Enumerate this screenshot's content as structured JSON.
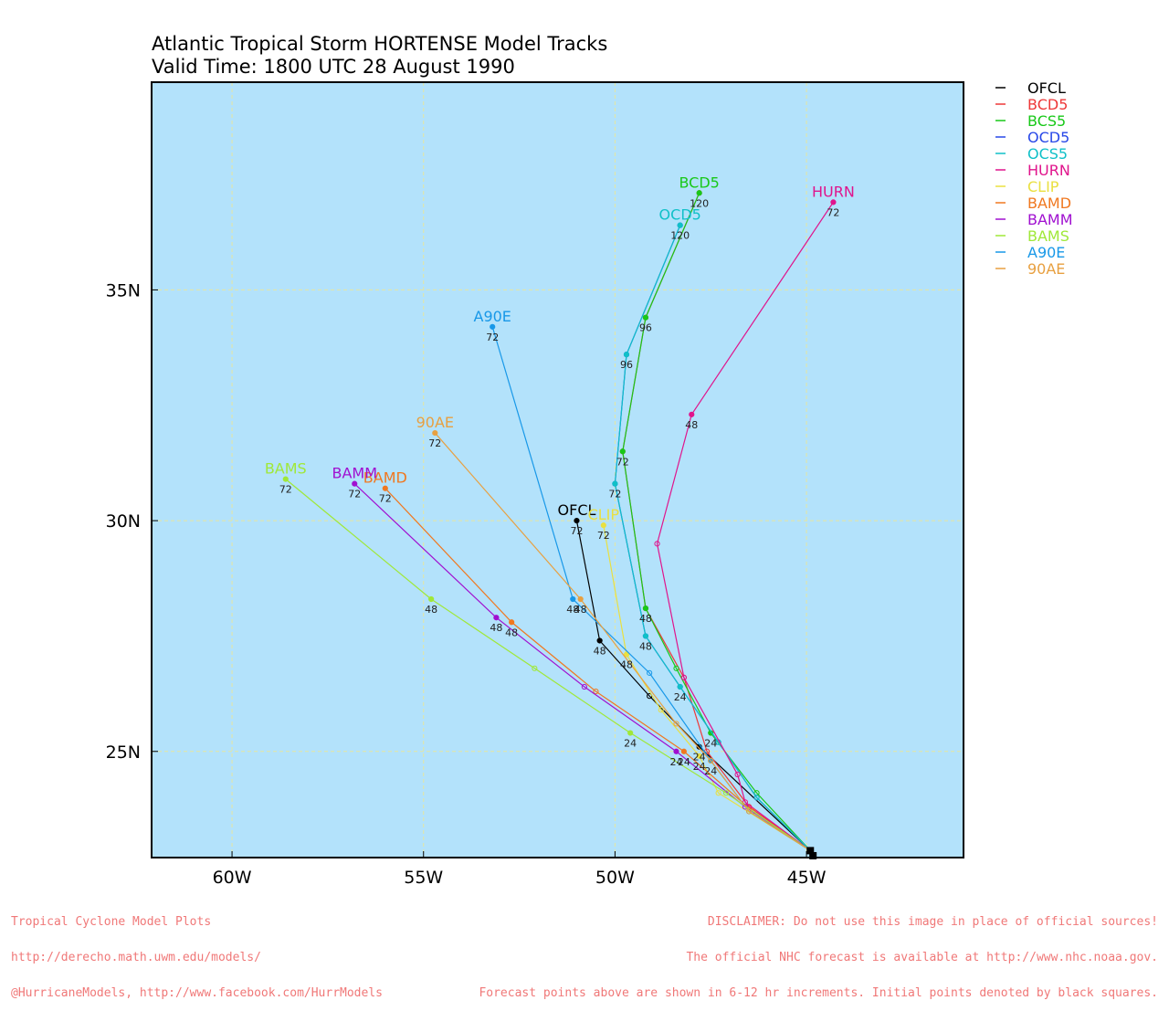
{
  "title": {
    "line1": "Atlantic Tropical Storm HORTENSE Model Tracks",
    "line2": "Valid Time: 1800 UTC 28 August 1990"
  },
  "footer": {
    "left": [
      "Tropical Cyclone Model Plots",
      "http://derecho.math.uwm.edu/models/",
      "@HurricaneModels, http://www.facebook.com/HurrModels"
    ],
    "right": [
      "DISCLAIMER: Do not use this image in place of official sources!",
      "The official NHC forecast is available at http://www.nhc.noaa.gov.",
      "Forecast points above are shown in 6-12 hr increments. Initial points denoted by black squares."
    ]
  },
  "colors": {
    "ocean": "#b3e2fb",
    "grid": "#e6e6a0",
    "frame": "#000000"
  },
  "chart_data": {
    "type": "line",
    "xlim": [
      -62.1,
      -40.9
    ],
    "ylim": [
      22.7,
      39.5
    ],
    "x_ticks": [
      {
        "value": -60,
        "label": "60W"
      },
      {
        "value": -55,
        "label": "55W"
      },
      {
        "value": -50,
        "label": "50W"
      },
      {
        "value": -45,
        "label": "45W"
      }
    ],
    "y_ticks": [
      {
        "value": 25,
        "label": "25N"
      },
      {
        "value": 30,
        "label": "30N"
      },
      {
        "value": 35,
        "label": "35N"
      }
    ],
    "grid": true,
    "legend_position": "right-outside-top",
    "initial_points": [
      [
        -44.9,
        22.85
      ],
      [
        -44.83,
        22.74
      ]
    ],
    "series": [
      {
        "name": "OFCL",
        "color": "#000000",
        "points": [
          [
            -44.9,
            22.85
          ],
          [
            -47.8,
            25.1
          ],
          [
            -49.1,
            26.2
          ],
          [
            -50.4,
            27.4
          ],
          [
            -51.0,
            30.0
          ]
        ],
        "labels": [
          {
            "idx": 1,
            "text": "24"
          },
          {
            "idx": 3,
            "text": "48"
          },
          {
            "idx": 4,
            "text": "72"
          }
        ],
        "end_label": "OFCL"
      },
      {
        "name": "BCD5",
        "color": "#ee3838",
        "points": [
          [
            -44.9,
            22.85
          ],
          [
            -46.5,
            23.8
          ],
          [
            -47.6,
            25.0
          ],
          [
            -48.2,
            26.6
          ],
          [
            -49.2,
            28.1
          ],
          [
            -49.8,
            31.5
          ],
          [
            -49.2,
            34.4
          ],
          [
            -47.8,
            37.1
          ]
        ],
        "labels": [],
        "end_label": ""
      },
      {
        "name": "BCS5",
        "color": "#18c818",
        "points": [
          [
            -44.9,
            22.85
          ],
          [
            -46.3,
            24.1
          ],
          [
            -47.5,
            25.4
          ],
          [
            -48.4,
            26.8
          ],
          [
            -49.2,
            28.1
          ],
          [
            -49.8,
            31.5
          ],
          [
            -49.2,
            34.4
          ],
          [
            -47.8,
            37.1
          ]
        ],
        "labels": [
          {
            "idx": 2,
            "text": "24"
          },
          {
            "idx": 4,
            "text": "48"
          },
          {
            "idx": 5,
            "text": "72"
          },
          {
            "idx": 6,
            "text": "96"
          },
          {
            "idx": 7,
            "text": "120"
          }
        ],
        "end_label": "BCD5"
      },
      {
        "name": "OCD5",
        "color": "#2848e8",
        "points": [
          [
            -44.9,
            22.85
          ],
          [
            -46.3,
            24.0
          ],
          [
            -47.3,
            25.2
          ],
          [
            -48.3,
            26.4
          ],
          [
            -49.2,
            27.5
          ],
          [
            -50.0,
            30.8
          ],
          [
            -49.7,
            33.6
          ],
          [
            -48.3,
            36.4
          ]
        ],
        "labels": [],
        "end_label": ""
      },
      {
        "name": "OCS5",
        "color": "#10c0c8",
        "points": [
          [
            -44.9,
            22.85
          ],
          [
            -46.3,
            24.0
          ],
          [
            -47.3,
            25.2
          ],
          [
            -48.3,
            26.4
          ],
          [
            -49.2,
            27.5
          ],
          [
            -50.0,
            30.8
          ],
          [
            -49.7,
            33.6
          ],
          [
            -48.3,
            36.4
          ]
        ],
        "labels": [
          {
            "idx": 3,
            "text": "24"
          },
          {
            "idx": 4,
            "text": "48"
          },
          {
            "idx": 5,
            "text": "72"
          },
          {
            "idx": 6,
            "text": "96"
          },
          {
            "idx": 7,
            "text": "120"
          }
        ],
        "end_label": "OCD5"
      },
      {
        "name": "HURN",
        "color": "#e0148c",
        "points": [
          [
            -44.9,
            22.85
          ],
          [
            -46.6,
            23.9
          ],
          [
            -46.8,
            24.5
          ],
          [
            -48.2,
            26.6
          ],
          [
            -48.9,
            29.5
          ],
          [
            -48.0,
            32.3
          ],
          [
            -44.3,
            36.9
          ]
        ],
        "labels": [
          {
            "idx": 5,
            "text": "48"
          },
          {
            "idx": 6,
            "text": "72"
          }
        ],
        "end_label": "HURN"
      },
      {
        "name": "CLIP",
        "color": "#eae040",
        "points": [
          [
            -44.9,
            22.85
          ],
          [
            -47.3,
            24.1
          ],
          [
            -47.8,
            24.9
          ],
          [
            -48.8,
            25.9
          ],
          [
            -49.7,
            27.1
          ],
          [
            -50.3,
            29.9
          ]
        ],
        "labels": [
          {
            "idx": 2,
            "text": "24"
          },
          {
            "idx": 4,
            "text": "48"
          },
          {
            "idx": 5,
            "text": "72"
          }
        ],
        "end_label": "CLIP"
      },
      {
        "name": "BAMD",
        "color": "#f07820",
        "points": [
          [
            -44.9,
            22.85
          ],
          [
            -46.4,
            23.7
          ],
          [
            -48.2,
            25.0
          ],
          [
            -50.5,
            26.3
          ],
          [
            -52.7,
            27.8
          ],
          [
            -56.0,
            30.7
          ]
        ],
        "labels": [
          {
            "idx": 2,
            "text": "24"
          },
          {
            "idx": 4,
            "text": "48"
          },
          {
            "idx": 5,
            "text": "72"
          }
        ],
        "end_label": "BAMD"
      },
      {
        "name": "BAMM",
        "color": "#a010d0",
        "points": [
          [
            -44.9,
            22.85
          ],
          [
            -46.6,
            23.8
          ],
          [
            -48.4,
            25.0
          ],
          [
            -50.8,
            26.4
          ],
          [
            -53.1,
            27.9
          ],
          [
            -56.8,
            30.8
          ]
        ],
        "labels": [
          {
            "idx": 2,
            "text": "24"
          },
          {
            "idx": 4,
            "text": "48"
          },
          {
            "idx": 5,
            "text": "72"
          }
        ],
        "end_label": "BAMM"
      },
      {
        "name": "BAMS",
        "color": "#a0e838",
        "points": [
          [
            -44.9,
            22.85
          ],
          [
            -47.1,
            24.1
          ],
          [
            -49.6,
            25.4
          ],
          [
            -52.1,
            26.8
          ],
          [
            -54.8,
            28.3
          ],
          [
            -58.6,
            30.9
          ]
        ],
        "labels": [
          {
            "idx": 2,
            "text": "24"
          },
          {
            "idx": 4,
            "text": "48"
          },
          {
            "idx": 5,
            "text": "72"
          }
        ],
        "end_label": "BAMS"
      },
      {
        "name": "A90E",
        "color": "#1898e8",
        "points": [
          [
            -44.9,
            22.85
          ],
          [
            -46.5,
            23.7
          ],
          [
            -47.5,
            24.8
          ],
          [
            -49.1,
            26.7
          ],
          [
            -51.1,
            28.3
          ],
          [
            -53.2,
            34.2
          ]
        ],
        "labels": [
          {
            "idx": 2,
            "text": "24"
          },
          {
            "idx": 4,
            "text": "48"
          },
          {
            "idx": 5,
            "text": "72"
          }
        ],
        "end_label": "A90E"
      },
      {
        "name": "90AE",
        "color": "#e8a040",
        "points": [
          [
            -44.9,
            22.85
          ],
          [
            -46.5,
            23.7
          ],
          [
            -47.5,
            24.8
          ],
          [
            -48.4,
            25.6
          ],
          [
            -50.9,
            28.3
          ],
          [
            -54.7,
            31.9
          ]
        ],
        "labels": [
          {
            "idx": 4,
            "text": "48"
          },
          {
            "idx": 5,
            "text": "72"
          }
        ],
        "end_label": "90AE"
      }
    ]
  }
}
